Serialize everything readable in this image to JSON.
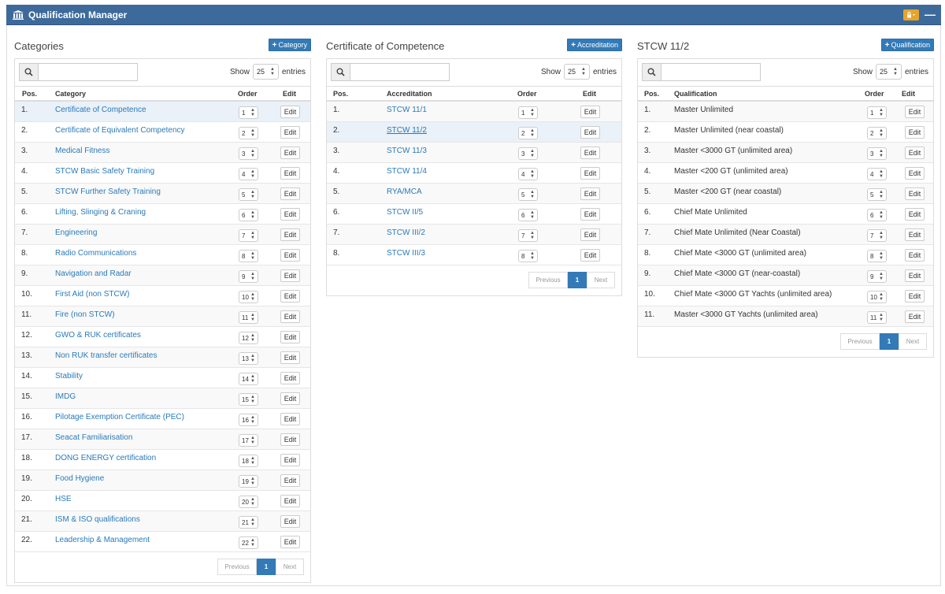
{
  "app": {
    "title": "Qualification Manager"
  },
  "columns": [
    {
      "title": "Categories",
      "add_label": "Category",
      "show_label": "Show",
      "page_size": "25",
      "entries_label": "entries",
      "headers": {
        "pos": "Pos.",
        "name": "Category",
        "order": "Order",
        "edit": "Edit"
      },
      "rows": [
        {
          "pos": "1.",
          "name": "Certificate of Competence",
          "order": "1",
          "edit": "Edit"
        },
        {
          "pos": "2.",
          "name": "Certificate of Equivalent Competency",
          "order": "2",
          "edit": "Edit"
        },
        {
          "pos": "3.",
          "name": "Medical Fitness",
          "order": "3",
          "edit": "Edit"
        },
        {
          "pos": "4.",
          "name": "STCW Basic Safety Training",
          "order": "4",
          "edit": "Edit"
        },
        {
          "pos": "5.",
          "name": "STCW Further Safety Training",
          "order": "5",
          "edit": "Edit"
        },
        {
          "pos": "6.",
          "name": "Lifting, Slinging & Craning",
          "order": "6",
          "edit": "Edit"
        },
        {
          "pos": "7.",
          "name": "Engineering",
          "order": "7",
          "edit": "Edit"
        },
        {
          "pos": "8.",
          "name": "Radio Communications",
          "order": "8",
          "edit": "Edit"
        },
        {
          "pos": "9.",
          "name": "Navigation and Radar",
          "order": "9",
          "edit": "Edit"
        },
        {
          "pos": "10.",
          "name": "First Aid (non STCW)",
          "order": "10",
          "edit": "Edit"
        },
        {
          "pos": "11.",
          "name": "Fire (non STCW)",
          "order": "11",
          "edit": "Edit"
        },
        {
          "pos": "12.",
          "name": "GWO & RUK certificates",
          "order": "12",
          "edit": "Edit"
        },
        {
          "pos": "13.",
          "name": "Non RUK transfer certificates",
          "order": "13",
          "edit": "Edit"
        },
        {
          "pos": "14.",
          "name": "Stability",
          "order": "14",
          "edit": "Edit"
        },
        {
          "pos": "15.",
          "name": "IMDG",
          "order": "15",
          "edit": "Edit"
        },
        {
          "pos": "16.",
          "name": "Pilotage Exemption Certificate (PEC)",
          "order": "16",
          "edit": "Edit"
        },
        {
          "pos": "17.",
          "name": "Seacat Familiarisation",
          "order": "17",
          "edit": "Edit"
        },
        {
          "pos": "18.",
          "name": "DONG ENERGY certification",
          "order": "18",
          "edit": "Edit"
        },
        {
          "pos": "19.",
          "name": "Food Hygiene",
          "order": "19",
          "edit": "Edit"
        },
        {
          "pos": "20.",
          "name": "HSE",
          "order": "20",
          "edit": "Edit"
        },
        {
          "pos": "21.",
          "name": "ISM & ISO qualifications",
          "order": "21",
          "edit": "Edit"
        },
        {
          "pos": "22.",
          "name": "Leadership & Management",
          "order": "22",
          "edit": "Edit"
        }
      ],
      "pager": {
        "prev": "Previous",
        "page": "1",
        "next": "Next"
      }
    },
    {
      "title": "Certificate of Competence",
      "add_label": "Accreditation",
      "show_label": "Show",
      "page_size": "25",
      "entries_label": "entries",
      "headers": {
        "pos": "Pos.",
        "name": "Accreditation",
        "order": "Order",
        "edit": "Edit"
      },
      "rows": [
        {
          "pos": "1.",
          "name": "STCW 11/1",
          "order": "1",
          "edit": "Edit"
        },
        {
          "pos": "2.",
          "name": "STCW 11/2",
          "order": "2",
          "edit": "Edit"
        },
        {
          "pos": "3.",
          "name": "STCW 11/3",
          "order": "3",
          "edit": "Edit"
        },
        {
          "pos": "4.",
          "name": "STCW 11/4",
          "order": "4",
          "edit": "Edit"
        },
        {
          "pos": "5.",
          "name": "RYA/MCA",
          "order": "5",
          "edit": "Edit"
        },
        {
          "pos": "6.",
          "name": "STCW II/5",
          "order": "6",
          "edit": "Edit"
        },
        {
          "pos": "7.",
          "name": "STCW III/2",
          "order": "7",
          "edit": "Edit"
        },
        {
          "pos": "8.",
          "name": "STCW III/3",
          "order": "8",
          "edit": "Edit"
        }
      ],
      "pager": {
        "prev": "Previous",
        "page": "1",
        "next": "Next"
      }
    },
    {
      "title": "STCW 11/2",
      "add_label": "Qualification",
      "show_label": "Show",
      "page_size": "25",
      "entries_label": "entries",
      "headers": {
        "pos": "Pos.",
        "name": "Qualification",
        "order": "Order",
        "edit": "Edit"
      },
      "rows": [
        {
          "pos": "1.",
          "name": "Master Unlimited",
          "order": "1",
          "edit": "Edit"
        },
        {
          "pos": "2.",
          "name": "Master Unlimited (near coastal)",
          "order": "2",
          "edit": "Edit"
        },
        {
          "pos": "3.",
          "name": "Master <3000 GT (unlimited area)",
          "order": "3",
          "edit": "Edit"
        },
        {
          "pos": "4.",
          "name": "Master <200 GT (unlimited area)",
          "order": "4",
          "edit": "Edit"
        },
        {
          "pos": "5.",
          "name": "Master <200 GT (near coastal)",
          "order": "5",
          "edit": "Edit"
        },
        {
          "pos": "6.",
          "name": "Chief Mate Unlimited",
          "order": "6",
          "edit": "Edit"
        },
        {
          "pos": "7.",
          "name": "Chief Mate Unlimited (Near Coastal)",
          "order": "7",
          "edit": "Edit"
        },
        {
          "pos": "8.",
          "name": "Chief Mate <3000 GT (unlimited area)",
          "order": "8",
          "edit": "Edit"
        },
        {
          "pos": "9.",
          "name": "Chief Mate <3000 GT (near-coastal)",
          "order": "9",
          "edit": "Edit"
        },
        {
          "pos": "10.",
          "name": "Chief Mate <3000 GT Yachts (unlimited area)",
          "order": "10",
          "edit": "Edit"
        },
        {
          "pos": "11.",
          "name": "Master <3000 GT Yachts (unlimited area)",
          "order": "11",
          "edit": "Edit"
        }
      ],
      "pager": {
        "prev": "Previous",
        "page": "1",
        "next": "Next"
      }
    }
  ],
  "selection": {
    "category_index": 0,
    "accreditation_index": 1
  },
  "icons": {
    "title": "institution-icon",
    "lock": "lock-icon",
    "collapse": "minus-icon",
    "search": "search-icon",
    "add": "plus-icon"
  },
  "colors": {
    "header_bg": "#3d6a9a",
    "link": "#2a7ab8",
    "primary": "#337ab7",
    "lock_btn": "#e8a42a",
    "selected_row": "#eaf1f8"
  }
}
